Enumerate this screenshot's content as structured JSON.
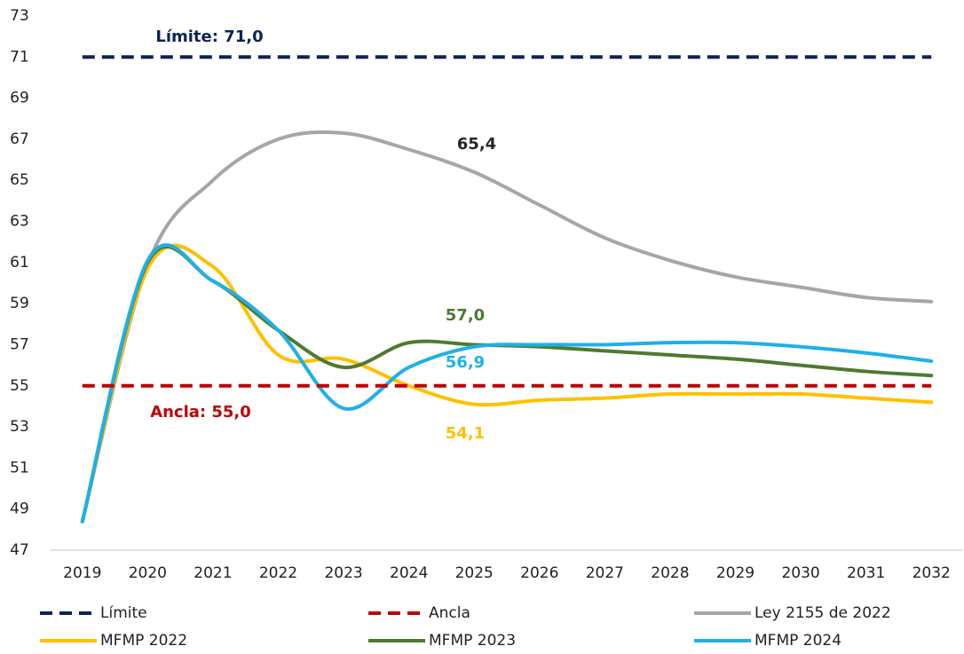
{
  "chart_data": {
    "type": "line",
    "categories": [
      "2019",
      "2020",
      "2021",
      "2022",
      "2023",
      "2024",
      "2025",
      "2026",
      "2027",
      "2028",
      "2029",
      "2030",
      "2031",
      "2032"
    ],
    "ylim": [
      47,
      73
    ],
    "yticks": [
      47,
      49,
      51,
      53,
      55,
      57,
      59,
      61,
      63,
      65,
      67,
      69,
      71,
      73
    ],
    "grid": false,
    "series": [
      {
        "name": "Límite",
        "color": "#0d2357",
        "dashed": true,
        "values": [
          71,
          71,
          71,
          71,
          71,
          71,
          71,
          71,
          71,
          71,
          71,
          71,
          71,
          71
        ]
      },
      {
        "name": "Ancla",
        "color": "#c00000",
        "dashed": true,
        "values": [
          55,
          55,
          55,
          55,
          55,
          55,
          55,
          55,
          55,
          55,
          55,
          55,
          55,
          55
        ]
      },
      {
        "name": "Ley 2155 de 2022",
        "color": "#a6a6a6",
        "values": [
          48.4,
          60.9,
          65.0,
          67.0,
          67.3,
          66.5,
          65.4,
          63.8,
          62.2,
          61.1,
          60.3,
          59.8,
          59.3,
          59.1
        ]
      },
      {
        "name": "MFMP 2022",
        "color": "#ffc000",
        "values": [
          48.4,
          60.7,
          60.8,
          56.5,
          56.3,
          55.0,
          54.1,
          54.3,
          54.4,
          54.6,
          54.6,
          54.6,
          54.4,
          54.2
        ]
      },
      {
        "name": "MFMP 2023",
        "color": "#4e7a2e",
        "values": [
          48.4,
          61.0,
          60.1,
          57.7,
          55.9,
          57.1,
          57.0,
          56.9,
          56.7,
          56.5,
          56.3,
          56.0,
          55.7,
          55.5
        ]
      },
      {
        "name": "MFMP 2024",
        "color": "#1fb0e8",
        "values": [
          48.4,
          61.1,
          60.1,
          57.7,
          53.9,
          55.9,
          56.9,
          57.0,
          57.0,
          57.1,
          57.1,
          56.9,
          56.6,
          56.2
        ]
      }
    ],
    "annotations": [
      {
        "text": "Límite: 71,0",
        "color": "#0d2357"
      },
      {
        "text": "Ancla: 55,0",
        "color": "#c00000"
      },
      {
        "text": "65,4",
        "color": "#262626"
      },
      {
        "text": "57,0",
        "color": "#4e7a2e"
      },
      {
        "text": "56,9",
        "color": "#1fb0e8"
      },
      {
        "text": "54,1",
        "color": "#ffc000"
      }
    ]
  }
}
